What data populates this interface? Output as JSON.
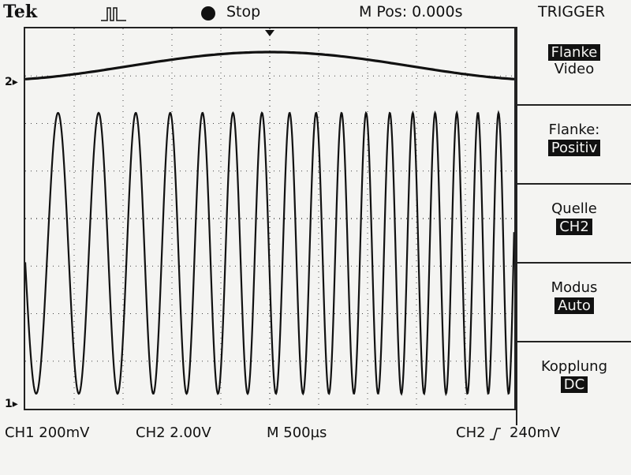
{
  "header": {
    "brand": "Tek",
    "status_icon": "pulse-waveform-icon",
    "run_state": "Stop",
    "horizontal_position": "M Pos: 0.000s",
    "menu_title": "TRIGGER"
  },
  "markers": {
    "ch2": "2",
    "ch1": "1"
  },
  "trigger_menu": {
    "type": {
      "label_selected": "Flanke",
      "label_other": "Video"
    },
    "slope": {
      "label": "Flanke:",
      "value": "Positiv"
    },
    "source": {
      "label": "Quelle",
      "value": "CH2"
    },
    "mode": {
      "label": "Modus",
      "value": "Auto"
    },
    "coupling": {
      "label": "Kopplung",
      "value": "DC"
    }
  },
  "readouts": {
    "ch1_scale": "CH1 200mV",
    "ch2_scale": "CH2 2.00V",
    "timebase": "M 500µs",
    "trigger_source": "CH2",
    "trigger_slope_icon": "rising-edge-icon",
    "trigger_level": "240mV"
  },
  "colors": {
    "background": "#f4f4f2",
    "trace": "#111111"
  }
}
